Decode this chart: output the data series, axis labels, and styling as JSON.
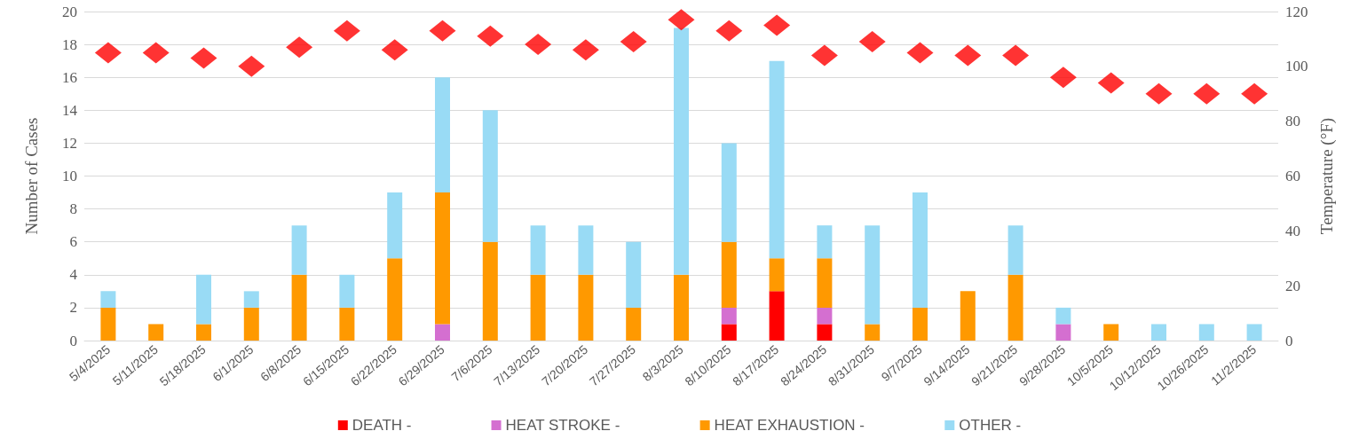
{
  "chart_data": {
    "type": "bar",
    "stacked": true,
    "ylabel": "Number of Cases",
    "y2label": "Temperature (°F)",
    "categories": [
      "5/4/2025",
      "5/11/2025",
      "5/18/2025",
      "6/1/2025",
      "6/8/2025",
      "6/15/2025",
      "6/22/2025",
      "6/29/2025",
      "7/6/2025",
      "7/13/2025",
      "7/20/2025",
      "7/27/2025",
      "8/3/2025",
      "8/10/2025",
      "8/17/2025",
      "8/24/2025",
      "8/31/2025",
      "9/7/2025",
      "9/14/2025",
      "9/21/2025",
      "9/28/2025",
      "10/5/2025",
      "10/12/2025",
      "10/26/2025",
      "11/2/2025"
    ],
    "series": [
      {
        "name": "DEATH -",
        "color": "#ff0000",
        "values": [
          0,
          0,
          0,
          0,
          0,
          0,
          0,
          0,
          0,
          0,
          0,
          0,
          0,
          1,
          3,
          1,
          0,
          0,
          0,
          0,
          0,
          0,
          0,
          0,
          0
        ]
      },
      {
        "name": "HEAT STROKE -",
        "color": "#d46fd0",
        "values": [
          0,
          0,
          0,
          0,
          0,
          0,
          0,
          1,
          0,
          0,
          0,
          0,
          0,
          1,
          0,
          1,
          0,
          0,
          0,
          0,
          1,
          0,
          0,
          0,
          0
        ]
      },
      {
        "name": "HEAT EXHAUSTION -",
        "color": "#ff9900",
        "values": [
          2,
          1,
          1,
          2,
          4,
          2,
          5,
          8,
          6,
          4,
          4,
          2,
          4,
          4,
          2,
          3,
          1,
          2,
          3,
          4,
          0,
          1,
          0,
          0,
          0
        ]
      },
      {
        "name": "OTHER -",
        "color": "#99dbf5",
        "values": [
          1,
          0,
          3,
          1,
          3,
          2,
          4,
          7,
          8,
          3,
          3,
          4,
          15,
          6,
          12,
          2,
          6,
          7,
          0,
          3,
          1,
          0,
          1,
          1,
          1
        ]
      },
      {
        "type": "scatter",
        "axis": "y2",
        "color": "#ff0000",
        "marker": "diamond",
        "values": [
          105,
          105,
          103,
          100,
          107,
          113,
          106,
          113,
          111,
          108,
          106,
          109,
          117,
          113,
          115,
          104,
          109,
          105,
          104,
          104,
          96,
          94,
          90,
          90,
          90
        ]
      }
    ],
    "ylim": [
      0,
      20
    ],
    "yticks": [
      0,
      2,
      4,
      6,
      8,
      10,
      12,
      14,
      16,
      18,
      20
    ],
    "y2lim": [
      0,
      120
    ],
    "y2ticks": [
      0,
      20,
      40,
      60,
      80,
      100,
      120
    ],
    "grid": "y",
    "legend": "bottom"
  }
}
